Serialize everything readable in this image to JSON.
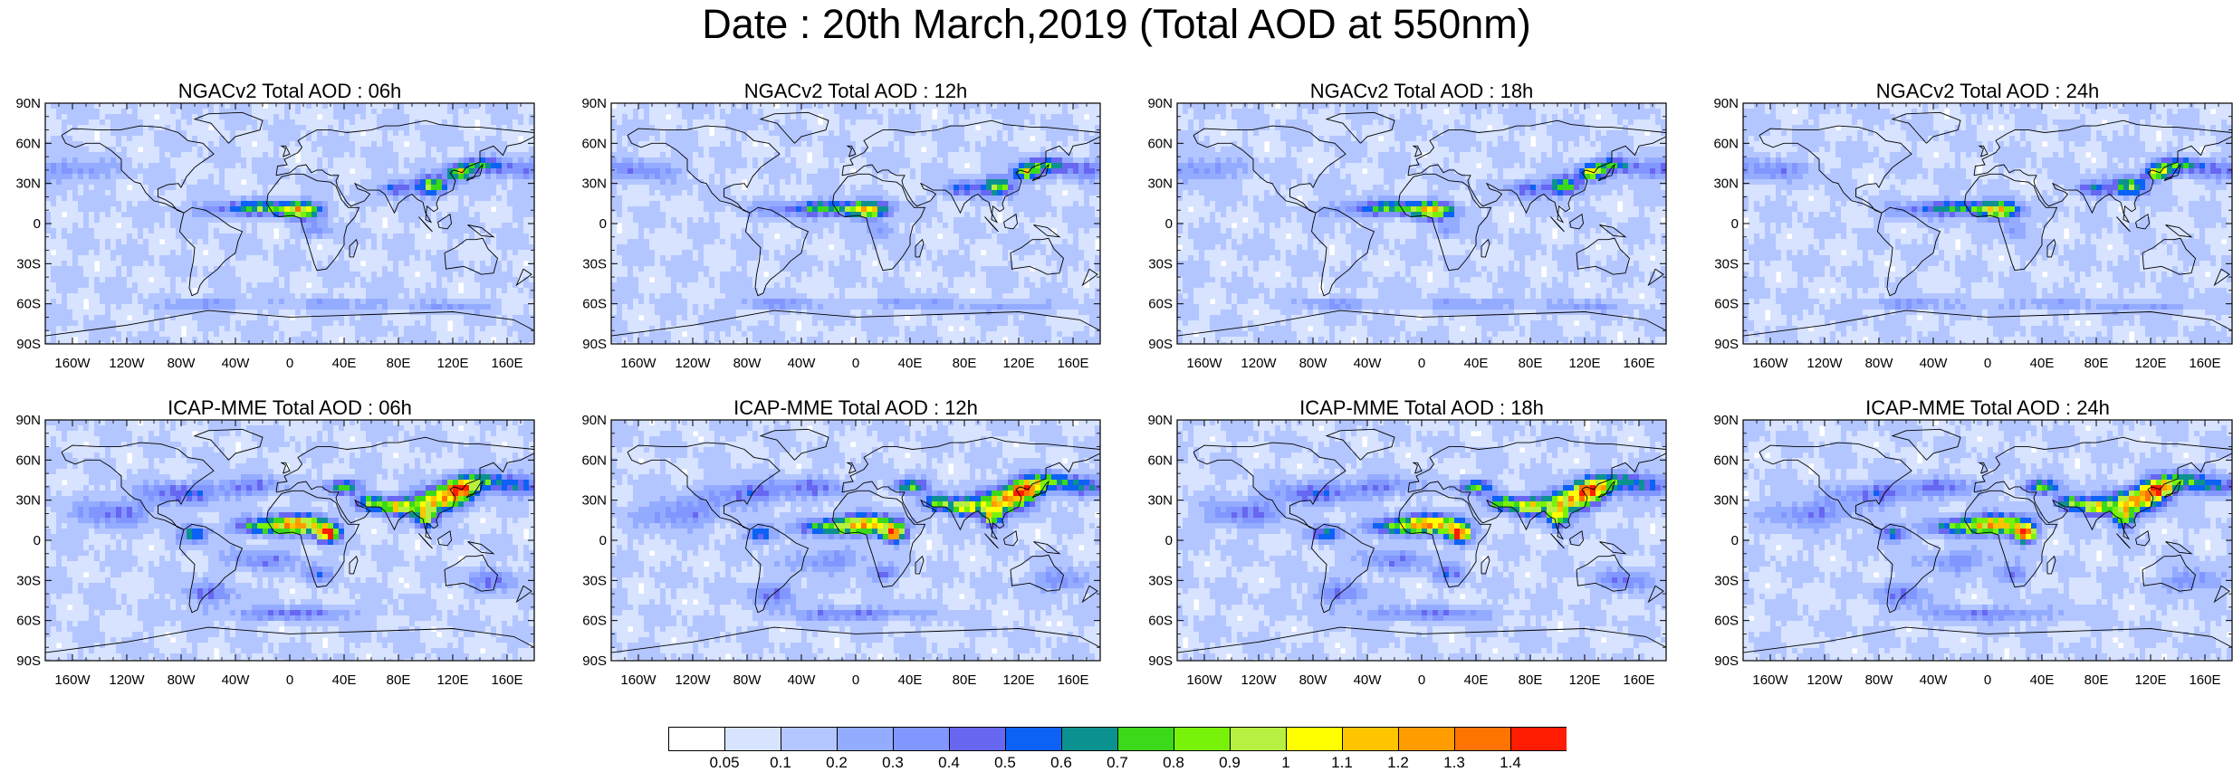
{
  "title": "Date : 20th March,2019 (Total AOD at 550nm)",
  "panels": [
    {
      "title": "NGACv2 Total AOD : 06h",
      "model": "NGACv2"
    },
    {
      "title": "NGACv2 Total AOD : 12h",
      "model": "NGACv2"
    },
    {
      "title": "NGACv2 Total AOD : 18h",
      "model": "NGACv2"
    },
    {
      "title": "NGACv2 Total AOD : 24h",
      "model": "NGACv2"
    },
    {
      "title": "ICAP-MME Total AOD : 06h",
      "model": "ICAP-MME"
    },
    {
      "title": "ICAP-MME Total AOD : 12h",
      "model": "ICAP-MME"
    },
    {
      "title": "ICAP-MME Total AOD : 18h",
      "model": "ICAP-MME"
    },
    {
      "title": "ICAP-MME Total AOD : 24h",
      "model": "ICAP-MME"
    }
  ],
  "lat_ticks": [
    "90N",
    "60N",
    "30N",
    "0",
    "30S",
    "60S",
    "90S"
  ],
  "lon_ticks": [
    "160W",
    "120W",
    "80W",
    "40W",
    "0",
    "40E",
    "80E",
    "120E",
    "160E"
  ],
  "colorbar": {
    "labels": [
      "0.05",
      "0.1",
      "0.2",
      "0.3",
      "0.4",
      "0.5",
      "0.6",
      "0.7",
      "0.8",
      "0.9",
      "1",
      "1.1",
      "1.2",
      "1.3",
      "1.4"
    ],
    "colors": [
      "#ffffff",
      "#d7e3ff",
      "#b4c6ff",
      "#94acff",
      "#8296ff",
      "#6767f2",
      "#0b62f5",
      "#0c9191",
      "#3bd91a",
      "#79f20a",
      "#b7f040",
      "#ffff00",
      "#ffc400",
      "#ff9d00",
      "#ff7400",
      "#ff1c00"
    ]
  }
}
